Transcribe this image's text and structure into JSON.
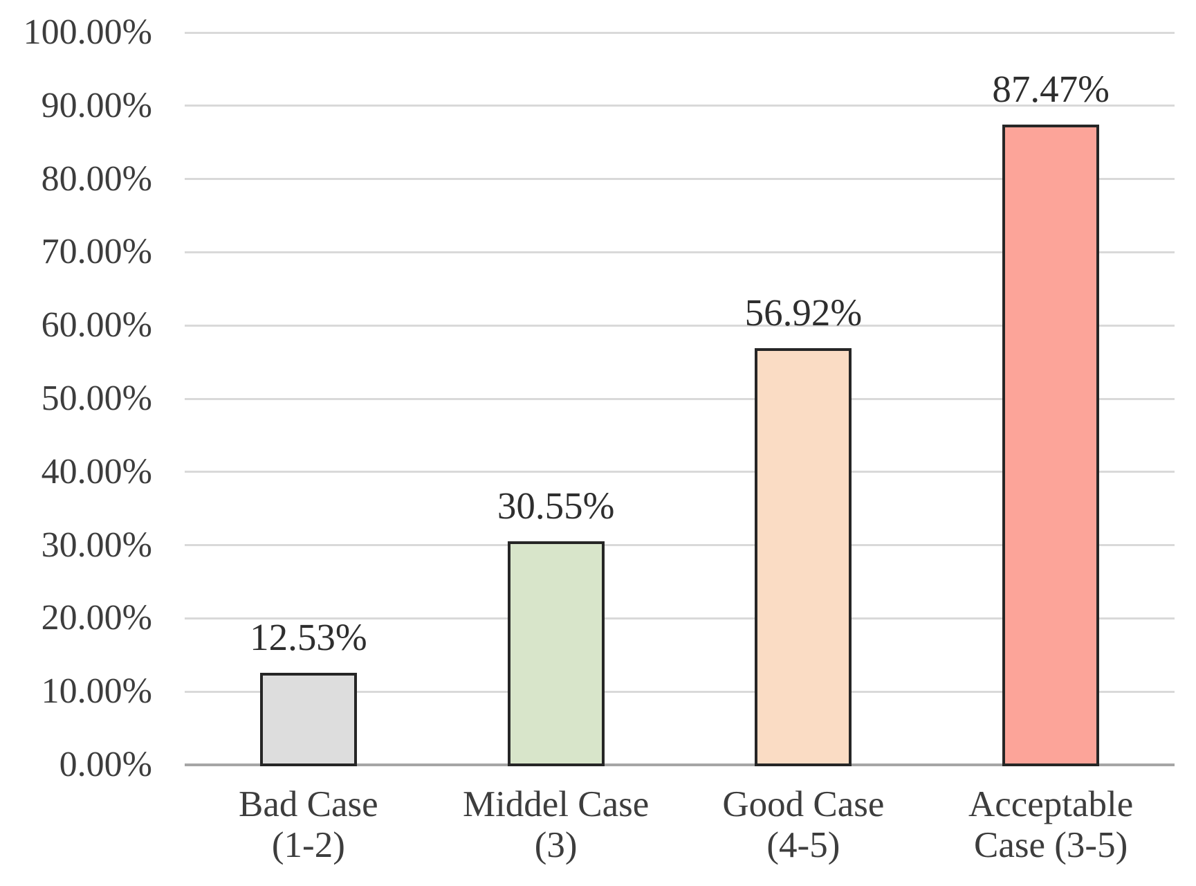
{
  "chart_data": {
    "type": "bar",
    "title": "",
    "xlabel": "",
    "ylabel": "",
    "categories": [
      "Bad Case\n(1-2)",
      "Middel Case\n(3)",
      "Good Case\n(4-5)",
      "Acceptable\nCase (3-5)"
    ],
    "values": [
      12.53,
      30.55,
      56.92,
      87.47
    ],
    "data_labels": [
      "12.53%",
      "30.55%",
      "56.92%",
      "87.47%"
    ],
    "bar_colors": [
      "#DDDDDD",
      "#D8E5CA",
      "#FADCC4",
      "#FCA499"
    ],
    "bar_border_color": "#262626",
    "ylim": [
      0,
      100
    ],
    "y_tick_values": [
      0,
      10,
      20,
      30,
      40,
      50,
      60,
      70,
      80,
      90,
      100
    ],
    "y_tick_labels": [
      "0.00%",
      "10.00%",
      "20.00%",
      "30.00%",
      "40.00%",
      "50.00%",
      "60.00%",
      "70.00%",
      "80.00%",
      "90.00%",
      "100.00%"
    ],
    "grid": "horizontal",
    "gridline_color": "#D9D9D9",
    "axis_line_color": "#A6A6A6",
    "legend_position": "none",
    "background_color": "#FFFFFF",
    "text_color": "#3D3D3D"
  }
}
